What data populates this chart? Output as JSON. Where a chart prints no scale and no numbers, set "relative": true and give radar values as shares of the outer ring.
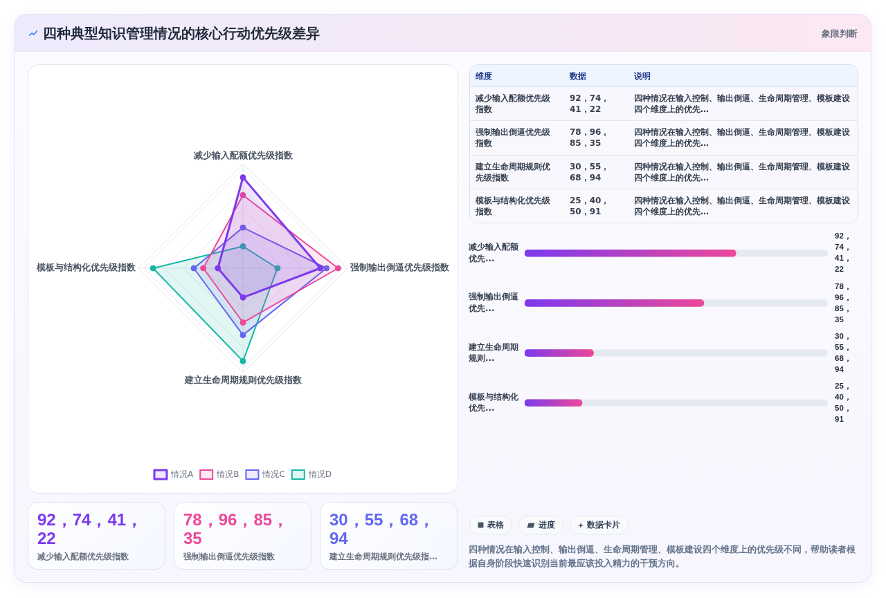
{
  "chart_data": [
    {
      "type": "other",
      "title": "四种典型知识管理情况的核心行动优先级差异",
      "subtitle": "象限判断"
    },
    {
      "type": "radar",
      "categories": [
        "减少输入配额优先级指数",
        "强制输出倒逼优先级指数",
        "建立生命周期规则优先级指数",
        "模板与结构化优先级指数"
      ],
      "relative": true,
      "series": [
        {
          "name": "情况A",
          "color": "#7c3aed",
          "values": [
            0.87,
            0.74,
            0.28,
            0.24
          ]
        },
        {
          "name": "情况B",
          "color": "#ec4899",
          "values": [
            0.7,
            0.91,
            0.52,
            0.38
          ]
        },
        {
          "name": "情况C",
          "color": "#6366f1",
          "values": [
            0.39,
            0.8,
            0.64,
            0.47
          ]
        },
        {
          "name": "情况D",
          "color": "#14b8a6",
          "values": [
            0.21,
            0.33,
            0.89,
            0.86
          ]
        }
      ],
      "grid": true,
      "legend": "bottom",
      "marker": "circle"
    },
    {
      "type": "other",
      "categories": [
        "维度",
        "数据",
        "说明"
      ],
      "cell_labels": [
        [
          "减少输入配额优先级指数",
          "92，74，41，22",
          "四种情况在输入控制、输出倒逼、生命周期管理、模板建设四个维度上的优先…"
        ],
        [
          "强制输出倒逼优先级指数",
          "78，96，85，35",
          "四种情况在输入控制、输出倒逼、生命周期管理、模板建设四个维度上的优先…"
        ],
        [
          "建立生命周期规则优先级指数",
          "30，55，68，94",
          "四种情况在输入控制、输出倒逼、生命周期管理、模板建设四个维度上的优先…"
        ],
        [
          "模板与结构化优先级指数",
          "25，40，50，91",
          "四种情况在输入控制、输出倒逼、生命周期管理、模板建设四个维度上的优先…"
        ]
      ]
    },
    {
      "type": "bar",
      "orientation": "horizontal",
      "categories": [
        "减少输入配额优先...",
        "强制输出倒逼优先...",
        "建立生命周期规则...",
        "模板与结构化优先..."
      ],
      "values": [
        92,
        78,
        30,
        25
      ],
      "value_labels": [
        "92，74，41，22",
        "78，96，85，35",
        "30，55，68，94",
        "25，40，50，91"
      ],
      "color": "#7c3aed",
      "xlim": [
        0,
        132
      ],
      "tick_labels": "y"
    },
    {
      "type": "other",
      "categories": [
        "减少输入配额优先级指数",
        "强制输出倒逼优先级指数",
        "建立生命周期规则优先级指…"
      ],
      "value_labels": [
        "92，74，41，22",
        "78，96，85，35",
        "30，55，68，94"
      ]
    },
    {
      "type": "other",
      "categories": [
        "表格",
        "进度",
        "数据卡片"
      ],
      "annotations": [
        "四种情况在输入控制、输出倒逼、生命周期管理、模板建设四个维度上的优先级不同，帮助读者根据自身阶段快速识别当前最应该投入精力的干预方向。"
      ]
    }
  ]
}
